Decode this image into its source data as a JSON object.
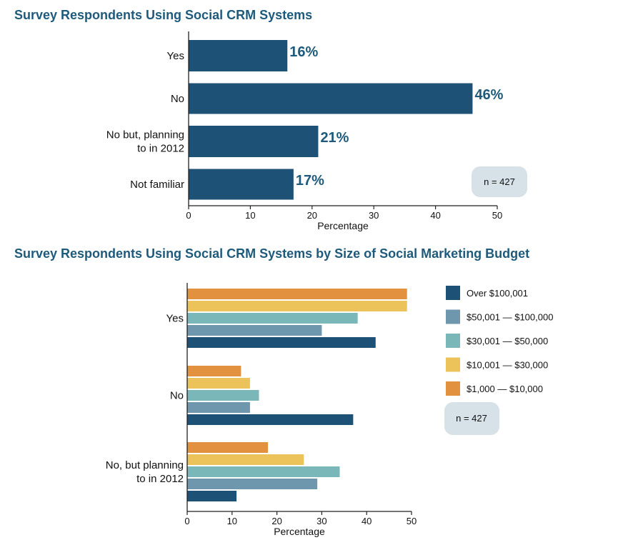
{
  "colors": {
    "title": "#1d5a7c",
    "series": [
      "#1e5176",
      "#6e97ad",
      "#7ab7b8",
      "#ecc25b",
      "#e2913e"
    ],
    "note_bg": "#d6e1e8"
  },
  "chart_data": [
    {
      "type": "bar",
      "orientation": "horizontal",
      "title": "Survey Respondents Using Social CRM Systems",
      "categories": [
        "Yes",
        "No",
        "No but, planning\nto in 2012",
        "Not familiar"
      ],
      "values": [
        16,
        46,
        21,
        17
      ],
      "value_labels": [
        "16%",
        "46%",
        "21%",
        "17%"
      ],
      "xlabel": "Percentage",
      "ylabel": "",
      "xlim": [
        0,
        50
      ],
      "xticks": [
        0,
        10,
        20,
        30,
        40,
        50
      ],
      "annotation": "n = 427",
      "grid": false
    },
    {
      "type": "bar",
      "orientation": "horizontal",
      "title": "Survey Respondents Using Social CRM Systems by Size of Social Marketing Budget",
      "categories": [
        "Yes",
        "No",
        "No, but planning\nto in 2012"
      ],
      "series": [
        {
          "name": "Over $100,001",
          "values": [
            42,
            37,
            11
          ]
        },
        {
          "name": "$50,001 — $100,000",
          "values": [
            30,
            14,
            29
          ]
        },
        {
          "name": "$30,001 — $50,000",
          "values": [
            38,
            16,
            34
          ]
        },
        {
          "name": "$10,001 — $30,000",
          "values": [
            49,
            14,
            26
          ]
        },
        {
          "name": "$1,000 — $10,000",
          "values": [
            49,
            12,
            18
          ]
        }
      ],
      "xlabel": "Percentage",
      "ylabel": "",
      "xlim": [
        0,
        50
      ],
      "xticks": [
        0,
        10,
        20,
        30,
        40,
        50
      ],
      "legend_position": "right",
      "annotation": "n = 427",
      "grid": false
    }
  ]
}
